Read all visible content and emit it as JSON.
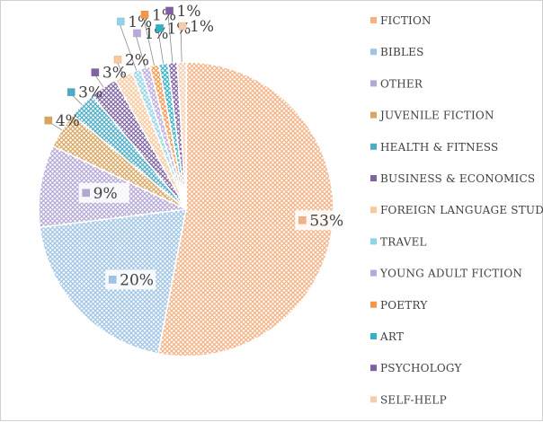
{
  "chart_data": {
    "type": "pie",
    "title": "",
    "legend_position": "right",
    "slices": [
      {
        "name": "FICTION",
        "value": 53,
        "label": "53%",
        "color": "#F4B183"
      },
      {
        "name": "BIBLES",
        "value": 20,
        "label": "20%",
        "color": "#9DC3E6"
      },
      {
        "name": "OTHER",
        "value": 9,
        "label": "9%",
        "color": "#B4A7D6"
      },
      {
        "name": "JUVENILE FICTION",
        "value": 4,
        "label": "4%",
        "color": "#D9A55F"
      },
      {
        "name": "HEALTH & FITNESS",
        "value": 3,
        "label": "3%",
        "color": "#4BACC6"
      },
      {
        "name": "BUSINESS & ECONOMICS",
        "value": 3,
        "label": "3%",
        "color": "#8064A2"
      },
      {
        "name": "FOREIGN LANGUAGE STUDY",
        "value": 2,
        "label": "2%",
        "color": "#F9C89B"
      },
      {
        "name": "TRAVEL",
        "value": 1,
        "label": "1%",
        "color": "#8FD3E8"
      },
      {
        "name": "YOUNG ADULT FICTION",
        "value": 1,
        "label": "1%",
        "color": "#B9A8DC"
      },
      {
        "name": "POETRY",
        "value": 1,
        "label": "1%",
        "color": "#F79646"
      },
      {
        "name": "ART",
        "value": 1,
        "label": "1%",
        "color": "#31B0C6"
      },
      {
        "name": "PSYCHOLOGY",
        "value": 1,
        "label": "1%",
        "color": "#7F5FA3"
      },
      {
        "name": "SELF-HELP",
        "value": 1,
        "label": "1%",
        "color": "#F8CBAD"
      }
    ]
  }
}
